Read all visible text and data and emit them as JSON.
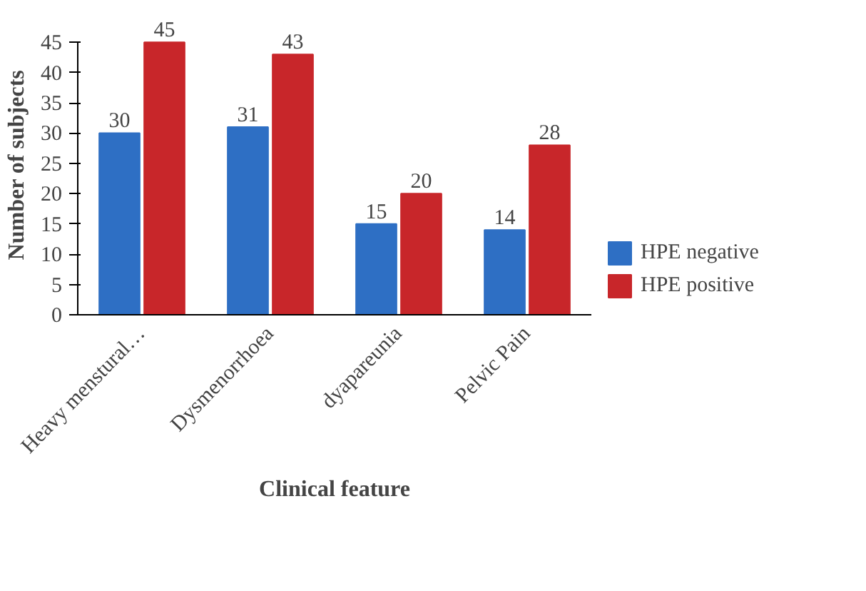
{
  "chart_data": {
    "type": "bar",
    "xlabel": "Clinical feature",
    "ylabel": "Number of subjects",
    "categories": [
      "Heavy menstural…",
      "Dysmenorrhoea",
      "dyapareunia",
      "Pelvic Pain"
    ],
    "series": [
      {
        "name": "HPE negative",
        "color": "#2e6fc4",
        "values": [
          30,
          31,
          15,
          14
        ]
      },
      {
        "name": "HPE positive",
        "color": "#c8262a",
        "values": [
          45,
          43,
          20,
          28
        ]
      }
    ],
    "ylim": [
      0,
      45
    ],
    "yticks": [
      0,
      5,
      10,
      15,
      20,
      25,
      30,
      35,
      40,
      45
    ],
    "grid": false,
    "legend": "right",
    "data_labels": true
  }
}
